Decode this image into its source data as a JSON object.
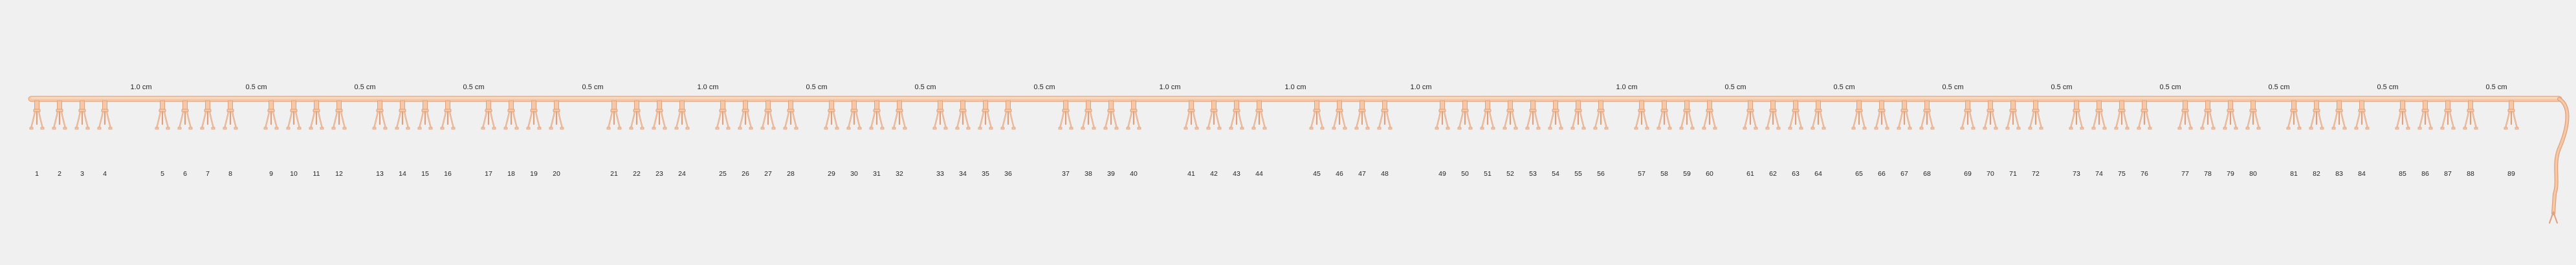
{
  "colors": {
    "background": "#f0f0f0",
    "tube_fill": "#f6c8a6",
    "tube_stroke": "#e0a07c",
    "label_text": "#222222"
  },
  "tube_labels": [
    "1",
    "2",
    "3",
    "4",
    "5",
    "6",
    "7",
    "8",
    "9",
    "10",
    "11",
    "12",
    "13",
    "14",
    "15",
    "16",
    "17",
    "18",
    "19",
    "20",
    "21",
    "22",
    "23",
    "24",
    "25",
    "26",
    "27",
    "28",
    "29",
    "30",
    "31",
    "32",
    "33",
    "34",
    "35",
    "36",
    "37",
    "38",
    "39",
    "40",
    "41",
    "42",
    "43",
    "44",
    "45",
    "46",
    "47",
    "48",
    "49",
    "50",
    "51",
    "52",
    "53",
    "54",
    "55",
    "56",
    "57",
    "58",
    "59",
    "60",
    "61",
    "62",
    "63",
    "64",
    "65",
    "66",
    "67",
    "68",
    "69",
    "70",
    "71",
    "72",
    "73",
    "74",
    "75",
    "76",
    "77",
    "78",
    "79",
    "80",
    "81",
    "82",
    "83",
    "84",
    "85",
    "86",
    "87",
    "88",
    "89"
  ],
  "groups": [
    {
      "spacing_label": "1.0 cm",
      "tubes": [
        1,
        2,
        3,
        4
      ]
    },
    {
      "spacing_label": "0.5 cm",
      "tubes": [
        5,
        6,
        7,
        8
      ]
    },
    {
      "spacing_label": "0.5 cm",
      "tubes": [
        9,
        10,
        11,
        12
      ]
    },
    {
      "spacing_label": "0.5 cm",
      "tubes": [
        13,
        14,
        15,
        16
      ]
    },
    {
      "spacing_label": "0.5 cm",
      "tubes": [
        17,
        18,
        19,
        20
      ]
    },
    {
      "spacing_label": "1.0 cm",
      "tubes": [
        21,
        22,
        23,
        24
      ]
    },
    {
      "spacing_label": "0.5 cm",
      "tubes": [
        25,
        26,
        27,
        28
      ]
    },
    {
      "spacing_label": "0.5 cm",
      "tubes": [
        29,
        30,
        31,
        32
      ]
    },
    {
      "spacing_label": "0.5 cm",
      "tubes": [
        33,
        34,
        35,
        36
      ]
    },
    {
      "spacing_label": "1.0 cm",
      "tubes": [
        37,
        38,
        39,
        40
      ]
    },
    {
      "spacing_label": "1.0 cm",
      "tubes": [
        41,
        42,
        43,
        44
      ]
    },
    {
      "spacing_label": "1.0 cm",
      "tubes": [
        45,
        46,
        47,
        48
      ]
    },
    {
      "spacing_label": "1.0 cm",
      "tubes": [
        49,
        50,
        51,
        52,
        53,
        54,
        55,
        56
      ]
    },
    {
      "spacing_label": "0.5 cm",
      "tubes": [
        57,
        58,
        59,
        60
      ]
    },
    {
      "spacing_label": "0.5 cm",
      "tubes": [
        61,
        62,
        63,
        64
      ]
    },
    {
      "spacing_label": "0.5 cm",
      "tubes": [
        65,
        66,
        67,
        68
      ]
    },
    {
      "spacing_label": "0.5 cm",
      "tubes": [
        69,
        70,
        71,
        72
      ]
    },
    {
      "spacing_label": "0.5 cm",
      "tubes": [
        73,
        74,
        75,
        76
      ]
    },
    {
      "spacing_label": "0.5 cm",
      "tubes": [
        77,
        78,
        79,
        80
      ]
    },
    {
      "spacing_label": "0.5 cm",
      "tubes": [
        81,
        82,
        83,
        84
      ]
    },
    {
      "spacing_label": "0.5 cm",
      "tubes": [
        85,
        86,
        87,
        88
      ]
    },
    {
      "spacing_label": "0.5 cm",
      "tubes": [
        89
      ]
    }
  ]
}
